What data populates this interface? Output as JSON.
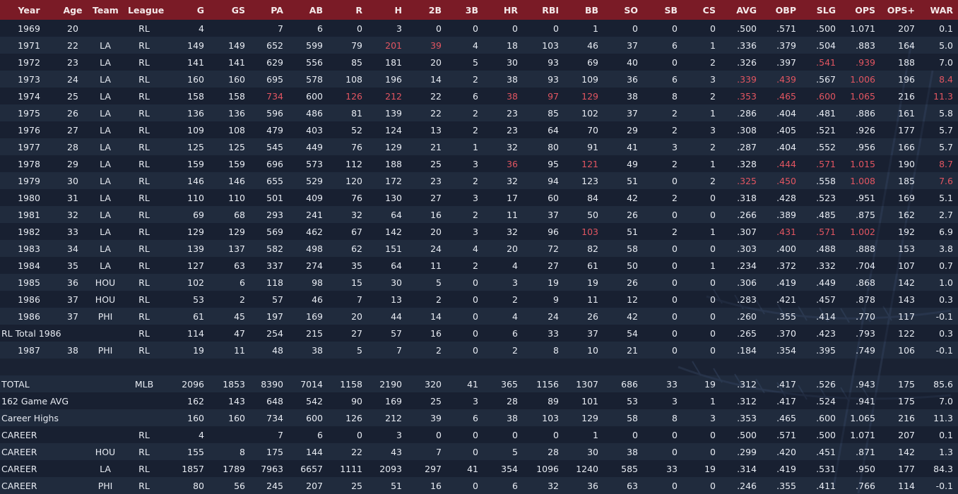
{
  "colors": {
    "header_bg": "#7a1b26",
    "highlight": "#e25561",
    "text": "#e7ebf2",
    "background": "#1c2536"
  },
  "columns": [
    "Year",
    "Age",
    "Team",
    "League",
    "G",
    "GS",
    "PA",
    "AB",
    "R",
    "H",
    "2B",
    "3B",
    "HR",
    "RBI",
    "BB",
    "SO",
    "SB",
    "CS",
    "AVG",
    "OBP",
    "SLG",
    "OPS",
    "OPS+",
    "WAR"
  ],
  "rows": [
    {
      "cells": [
        "1969",
        "20",
        "",
        "RL",
        "4",
        "",
        "7",
        "6",
        "0",
        "3",
        "0",
        "0",
        "0",
        "0",
        "1",
        "0",
        "0",
        "0",
        ".500",
        ".571",
        ".500",
        "1.071",
        "207",
        "0.1"
      ],
      "hi": []
    },
    {
      "cells": [
        "1971",
        "22",
        "LA",
        "RL",
        "149",
        "149",
        "652",
        "599",
        "79",
        "201",
        "39",
        "4",
        "18",
        "103",
        "46",
        "37",
        "6",
        "1",
        ".336",
        ".379",
        ".504",
        ".883",
        "164",
        "5.0"
      ],
      "hi": [
        9,
        10
      ]
    },
    {
      "cells": [
        "1972",
        "23",
        "LA",
        "RL",
        "141",
        "141",
        "629",
        "556",
        "85",
        "181",
        "20",
        "5",
        "30",
        "93",
        "69",
        "40",
        "0",
        "2",
        ".326",
        ".397",
        ".541",
        ".939",
        "188",
        "7.0"
      ],
      "hi": [
        20,
        21
      ]
    },
    {
      "cells": [
        "1973",
        "24",
        "LA",
        "RL",
        "160",
        "160",
        "695",
        "578",
        "108",
        "196",
        "14",
        "2",
        "38",
        "93",
        "109",
        "36",
        "6",
        "3",
        ".339",
        ".439",
        ".567",
        "1.006",
        "196",
        "8.4"
      ],
      "hi": [
        18,
        19,
        21,
        23
      ]
    },
    {
      "cells": [
        "1974",
        "25",
        "LA",
        "RL",
        "158",
        "158",
        "734",
        "600",
        "126",
        "212",
        "22",
        "6",
        "38",
        "97",
        "129",
        "38",
        "8",
        "2",
        ".353",
        ".465",
        ".600",
        "1.065",
        "216",
        "11.3"
      ],
      "hi": [
        6,
        8,
        9,
        12,
        13,
        14,
        18,
        19,
        20,
        21,
        23
      ]
    },
    {
      "cells": [
        "1975",
        "26",
        "LA",
        "RL",
        "136",
        "136",
        "596",
        "486",
        "81",
        "139",
        "22",
        "2",
        "23",
        "85",
        "102",
        "37",
        "2",
        "1",
        ".286",
        ".404",
        ".481",
        ".886",
        "161",
        "5.8"
      ],
      "hi": []
    },
    {
      "cells": [
        "1976",
        "27",
        "LA",
        "RL",
        "109",
        "108",
        "479",
        "403",
        "52",
        "124",
        "13",
        "2",
        "23",
        "64",
        "70",
        "29",
        "2",
        "3",
        ".308",
        ".405",
        ".521",
        ".926",
        "177",
        "5.7"
      ],
      "hi": []
    },
    {
      "cells": [
        "1977",
        "28",
        "LA",
        "RL",
        "125",
        "125",
        "545",
        "449",
        "76",
        "129",
        "21",
        "1",
        "32",
        "80",
        "91",
        "41",
        "3",
        "2",
        ".287",
        ".404",
        ".552",
        ".956",
        "166",
        "5.7"
      ],
      "hi": []
    },
    {
      "cells": [
        "1978",
        "29",
        "LA",
        "RL",
        "159",
        "159",
        "696",
        "573",
        "112",
        "188",
        "25",
        "3",
        "36",
        "95",
        "121",
        "49",
        "2",
        "1",
        ".328",
        ".444",
        ".571",
        "1.015",
        "190",
        "8.7"
      ],
      "hi": [
        12,
        14,
        19,
        20,
        21,
        23
      ]
    },
    {
      "cells": [
        "1979",
        "30",
        "LA",
        "RL",
        "146",
        "146",
        "655",
        "529",
        "120",
        "172",
        "23",
        "2",
        "32",
        "94",
        "123",
        "51",
        "0",
        "2",
        ".325",
        ".450",
        ".558",
        "1.008",
        "185",
        "7.6"
      ],
      "hi": [
        18,
        19,
        21,
        23
      ]
    },
    {
      "cells": [
        "1980",
        "31",
        "LA",
        "RL",
        "110",
        "110",
        "501",
        "409",
        "76",
        "130",
        "27",
        "3",
        "17",
        "60",
        "84",
        "42",
        "2",
        "0",
        ".318",
        ".428",
        ".523",
        ".951",
        "169",
        "5.1"
      ],
      "hi": []
    },
    {
      "cells": [
        "1981",
        "32",
        "LA",
        "RL",
        "69",
        "68",
        "293",
        "241",
        "32",
        "64",
        "16",
        "2",
        "11",
        "37",
        "50",
        "26",
        "0",
        "0",
        ".266",
        ".389",
        ".485",
        ".875",
        "162",
        "2.7"
      ],
      "hi": []
    },
    {
      "cells": [
        "1982",
        "33",
        "LA",
        "RL",
        "129",
        "129",
        "569",
        "462",
        "67",
        "142",
        "20",
        "3",
        "32",
        "96",
        "103",
        "51",
        "2",
        "1",
        ".307",
        ".431",
        ".571",
        "1.002",
        "192",
        "6.9"
      ],
      "hi": [
        14,
        19,
        20,
        21
      ]
    },
    {
      "cells": [
        "1983",
        "34",
        "LA",
        "RL",
        "139",
        "137",
        "582",
        "498",
        "62",
        "151",
        "24",
        "4",
        "20",
        "72",
        "82",
        "58",
        "0",
        "0",
        ".303",
        ".400",
        ".488",
        ".888",
        "153",
        "3.8"
      ],
      "hi": []
    },
    {
      "cells": [
        "1984",
        "35",
        "LA",
        "RL",
        "127",
        "63",
        "337",
        "274",
        "35",
        "64",
        "11",
        "2",
        "4",
        "27",
        "61",
        "50",
        "0",
        "1",
        ".234",
        ".372",
        ".332",
        ".704",
        "107",
        "0.7"
      ],
      "hi": []
    },
    {
      "cells": [
        "1985",
        "36",
        "HOU",
        "RL",
        "102",
        "6",
        "118",
        "98",
        "15",
        "30",
        "5",
        "0",
        "3",
        "19",
        "19",
        "26",
        "0",
        "0",
        ".306",
        ".419",
        ".449",
        ".868",
        "142",
        "1.0"
      ],
      "hi": []
    },
    {
      "cells": [
        "1986",
        "37",
        "HOU",
        "RL",
        "53",
        "2",
        "57",
        "46",
        "7",
        "13",
        "2",
        "0",
        "2",
        "9",
        "11",
        "12",
        "0",
        "0",
        ".283",
        ".421",
        ".457",
        ".878",
        "143",
        "0.3"
      ],
      "hi": []
    },
    {
      "cells": [
        "1986",
        "37",
        "PHI",
        "RL",
        "61",
        "45",
        "197",
        "169",
        "20",
        "44",
        "14",
        "0",
        "4",
        "24",
        "26",
        "42",
        "0",
        "0",
        ".260",
        ".355",
        ".414",
        ".770",
        "117",
        "-0.1"
      ],
      "hi": []
    },
    {
      "cells": [
        "RL Total 1986",
        "",
        "",
        "RL",
        "114",
        "47",
        "254",
        "215",
        "27",
        "57",
        "16",
        "0",
        "6",
        "33",
        "37",
        "54",
        "0",
        "0",
        ".265",
        ".370",
        ".423",
        ".793",
        "122",
        "0.3"
      ],
      "hi": []
    },
    {
      "cells": [
        "1987",
        "38",
        "PHI",
        "RL",
        "19",
        "11",
        "48",
        "38",
        "5",
        "7",
        "2",
        "0",
        "2",
        "8",
        "10",
        "21",
        "0",
        "0",
        ".184",
        ".354",
        ".395",
        ".749",
        "106",
        "-0.1"
      ],
      "hi": []
    },
    {
      "blank": true,
      "cells": [],
      "hi": []
    },
    {
      "cells": [
        "TOTAL",
        "",
        "",
        "MLB",
        "2096",
        "1853",
        "8390",
        "7014",
        "1158",
        "2190",
        "320",
        "41",
        "365",
        "1156",
        "1307",
        "686",
        "33",
        "19",
        ".312",
        ".417",
        ".526",
        ".943",
        "175",
        "85.6"
      ],
      "hi": []
    },
    {
      "cells": [
        "162 Game AVG",
        "",
        "",
        "",
        "162",
        "143",
        "648",
        "542",
        "90",
        "169",
        "25",
        "3",
        "28",
        "89",
        "101",
        "53",
        "3",
        "1",
        ".312",
        ".417",
        ".524",
        ".941",
        "175",
        "7.0"
      ],
      "hi": []
    },
    {
      "cells": [
        "Career Highs",
        "",
        "",
        "",
        "160",
        "160",
        "734",
        "600",
        "126",
        "212",
        "39",
        "6",
        "38",
        "103",
        "129",
        "58",
        "8",
        "3",
        ".353",
        ".465",
        ".600",
        "1.065",
        "216",
        "11.3"
      ],
      "hi": []
    },
    {
      "cells": [
        "CAREER",
        "",
        "",
        "RL",
        "4",
        "",
        "7",
        "6",
        "0",
        "3",
        "0",
        "0",
        "0",
        "0",
        "1",
        "0",
        "0",
        "0",
        ".500",
        ".571",
        ".500",
        "1.071",
        "207",
        "0.1"
      ],
      "hi": []
    },
    {
      "cells": [
        "CAREER",
        "",
        "HOU",
        "RL",
        "155",
        "8",
        "175",
        "144",
        "22",
        "43",
        "7",
        "0",
        "5",
        "28",
        "30",
        "38",
        "0",
        "0",
        ".299",
        ".420",
        ".451",
        ".871",
        "142",
        "1.3"
      ],
      "hi": []
    },
    {
      "cells": [
        "CAREER",
        "",
        "LA",
        "RL",
        "1857",
        "1789",
        "7963",
        "6657",
        "1111",
        "2093",
        "297",
        "41",
        "354",
        "1096",
        "1240",
        "585",
        "33",
        "19",
        ".314",
        ".419",
        ".531",
        ".950",
        "177",
        "84.3"
      ],
      "hi": []
    },
    {
      "cells": [
        "CAREER",
        "",
        "PHI",
        "RL",
        "80",
        "56",
        "245",
        "207",
        "25",
        "51",
        "16",
        "0",
        "6",
        "32",
        "36",
        "63",
        "0",
        "0",
        ".246",
        ".355",
        ".411",
        ".766",
        "114",
        "-0.1"
      ],
      "hi": []
    }
  ]
}
